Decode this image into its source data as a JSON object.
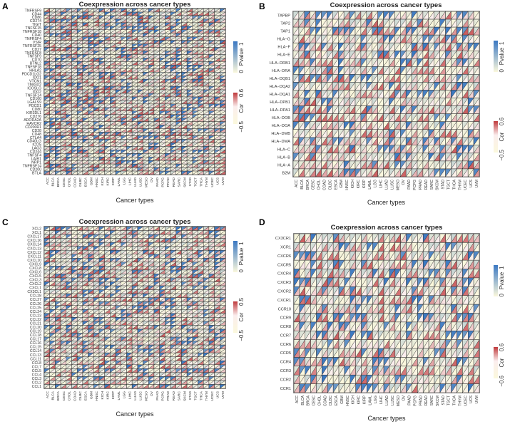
{
  "chart_data": [
    {
      "type": "heatmap",
      "panel_label": "A",
      "title": "Coexpression across cancer types",
      "xlabel": "Cancer types",
      "rows": [
        "TNFRSF9",
        "CD44",
        "CD86",
        "CD274",
        "TIGIT",
        "TNFSF15",
        "TNFRSF18",
        "CD40",
        "TNFRSF4",
        "VSIR",
        "TNFRSF25",
        "CD27",
        "TNFRSF8",
        "TNFSF9",
        "CD70",
        "BTNL2",
        "TNFSF18",
        "HHLA2",
        "PDCD1LG2",
        "IDO1",
        "VTCN1",
        "TMIGD2",
        "ICOSLG",
        "IDO2",
        "TNFSF14",
        "CD160",
        "LGALS9",
        "PDCD1",
        "CD80",
        "KIR3DL1",
        "CD276",
        "ADORA2A",
        "HAVCR2",
        "CD200R1",
        "CD28",
        "CD48",
        "CTLA4",
        "CD40LG",
        "ICOS",
        "LAG3",
        "CD244",
        "TNFSF4",
        "LAIR1",
        "NRP1",
        "TNFRSF14",
        "CD200",
        "BTLA"
      ],
      "legend_pvalue": {
        "title": "Pvalue",
        "min": "0",
        "max": "1"
      },
      "legend_cor": {
        "title": "Cor",
        "min": "−0.5",
        "max": "0.6"
      }
    },
    {
      "type": "heatmap",
      "panel_label": "B",
      "title": "Coexpression across cancer types",
      "xlabel": "Cancer types",
      "rows": [
        "TAPBP",
        "TAP2",
        "TAP1",
        "HLA−G",
        "HLA−F",
        "HLA−E",
        "HLA−DRB1",
        "HLA−DRA",
        "HLA−DQB1",
        "HLA−DQA2",
        "HLA−DQA1",
        "HLA−DPB1",
        "HLA−DPA1",
        "HLA−DOB",
        "HLA−DOA",
        "HLA−DMB",
        "HLA−DMA",
        "HLA−C",
        "HLA−B",
        "HLA−A",
        "B2M"
      ],
      "legend_pvalue": {
        "title": "Pvalue",
        "min": "0",
        "max": "1"
      },
      "legend_cor": {
        "title": "Cor",
        "min": "−0.5",
        "max": "0.6"
      }
    },
    {
      "type": "heatmap",
      "panel_label": "C",
      "title": "Coexpression across cancer types",
      "xlabel": "Cancer types",
      "rows": [
        "XCL2",
        "XCL1",
        "CXCL17",
        "CXCL16",
        "CXCL14",
        "CXCL13",
        "CXCL12",
        "CXCL11",
        "CXCL10",
        "CXCL9",
        "CXCL8",
        "CXCL6",
        "CXCL5",
        "CXCL3",
        "CXCL2",
        "CXCL1",
        "CX3CL1",
        "CCL28",
        "CCL27",
        "CCL26",
        "CCL25",
        "CCL24",
        "CCL23",
        "CCL22",
        "CCL21",
        "CCL20",
        "CCL19",
        "CCL18",
        "CCL17",
        "CCL16",
        "CCL15",
        "CCL14",
        "CCL13",
        "CCL11",
        "CCL8",
        "CCL7",
        "CCL5",
        "CCL4",
        "CCL3",
        "CCL2",
        "CCL1"
      ],
      "legend_pvalue": {
        "title": "Pvalue",
        "min": "0",
        "max": "1"
      },
      "legend_cor": {
        "title": "Cor",
        "min": "−0.5",
        "max": "0.5"
      }
    },
    {
      "type": "heatmap",
      "panel_label": "D",
      "title": "Coexpression across cancer types",
      "xlabel": "Cancer types",
      "rows": [
        "CX3CR1",
        "XCR1",
        "CXCR6",
        "CXCR5",
        "CXCR4",
        "CXCR3",
        "CXCR2",
        "CXCR1",
        "CCR10",
        "CCR9",
        "CCR8",
        "CCR7",
        "CCR6",
        "CCR5",
        "CCR4",
        "CCR3",
        "CCR2",
        "CCR1"
      ],
      "legend_pvalue": {
        "title": "Pvalue",
        "min": "0",
        "max": "1"
      },
      "legend_cor": {
        "title": "Cor",
        "min": "−0.6",
        "max": "0.6"
      }
    }
  ],
  "cancer_types": [
    "ACC",
    "BLCA",
    "BRCA",
    "CESC",
    "CHOL",
    "COAD",
    "DLBC",
    "ESCA",
    "GBM",
    "HNSC",
    "KICH",
    "KIRC",
    "KIRP",
    "LAML",
    "LGG",
    "LIHC",
    "LUAD",
    "LUSC",
    "MESO",
    "OV",
    "PAAD",
    "PCPG",
    "PRAD",
    "READ",
    "SARC",
    "SKCM",
    "STAD",
    "TGCT",
    "THCA",
    "THYM",
    "UCEC",
    "UCS",
    "UVM"
  ],
  "colors": {
    "pvalue_high": "#3a78c2",
    "pvalue_low": "#fbf8dc",
    "cor_high": "#c0393b",
    "cor_mid": "#fbeeee",
    "cor_low": "#fbf8dc"
  }
}
